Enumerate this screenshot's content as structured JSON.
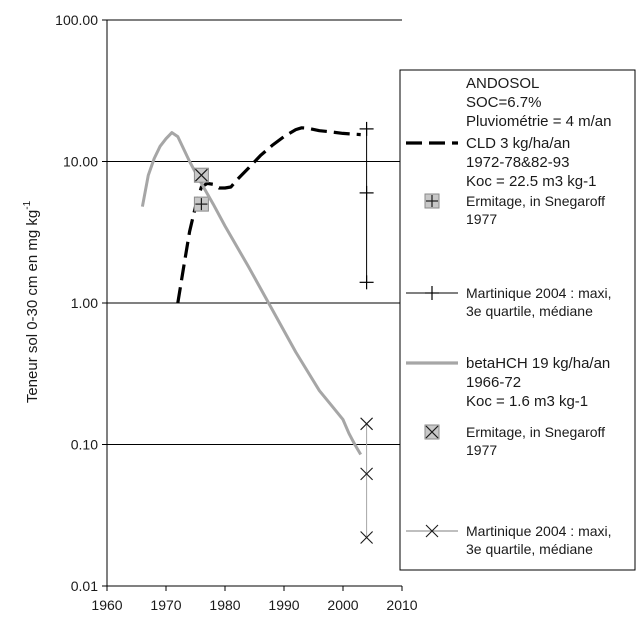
{
  "chart_data": {
    "type": "line",
    "xlabel": "",
    "ylabel": "Teneur sol 0-30 cm en  mg kg",
    "ylabel_sup": "-1",
    "xlim": [
      1960,
      2010
    ],
    "ylim": [
      0.01,
      100
    ],
    "y_scale": "log",
    "x_ticks": [
      "1960",
      "1970",
      "1980",
      "1990",
      "2000",
      "2010"
    ],
    "y_ticks": [
      "100.00",
      "10.00",
      "1.00",
      "0.10",
      "0.01"
    ],
    "grid": "horizontal",
    "legend_position": "right",
    "legend_header": [
      "ANDOSOL",
      "SOC=6.7%",
      "Pluviométrie = 4 m/an"
    ],
    "series": [
      {
        "name": "CLD 3 kg/ha/an 1972-78&82-93 Koc = 22.5 m3 kg-1",
        "legend_lines": [
          "CLD 3 kg/ha/an",
          "1972-78&82-93",
          "Koc = 22.5 m3 kg-1"
        ],
        "style": "dashed",
        "color": "#000000",
        "points": [
          [
            1972,
            1.0
          ],
          [
            1973,
            1.8
          ],
          [
            1974,
            3.2
          ],
          [
            1975,
            4.8
          ],
          [
            1976,
            6.6
          ],
          [
            1977,
            7.0
          ],
          [
            1978,
            6.9
          ],
          [
            1979,
            6.5
          ],
          [
            1980,
            6.5
          ],
          [
            1981,
            6.6
          ],
          [
            1982,
            7.4
          ],
          [
            1984,
            9.0
          ],
          [
            1986,
            11.0
          ],
          [
            1988,
            13.0
          ],
          [
            1990,
            15.0
          ],
          [
            1992,
            16.8
          ],
          [
            1993,
            17.3
          ],
          [
            1994,
            17.2
          ],
          [
            1996,
            16.5
          ],
          [
            1998,
            16.2
          ],
          [
            2000,
            15.8
          ],
          [
            2002,
            15.6
          ],
          [
            2003,
            15.5
          ]
        ]
      },
      {
        "name": "Ermitage, in Snegaroff 1977",
        "legend_lines": [
          "Ermitage, in Snegaroff",
          "1977"
        ],
        "marker": "plus-box",
        "points": [
          [
            1976,
            5.0
          ]
        ]
      },
      {
        "name": "Martinique 2004 : maxi, 3e quartile, médiane",
        "legend_lines": [
          "Martinique 2004 : maxi,",
          "3e quartile, médiane"
        ],
        "marker": "plus",
        "color": "#000000",
        "points": [
          [
            2004,
            17.0
          ],
          [
            2004,
            6.0
          ],
          [
            2004,
            1.4
          ]
        ]
      },
      {
        "name": "betaHCH 19 kg/ha/an 1966-72 Koc = 1.6 m3 kg-1",
        "legend_lines": [
          "betaHCH 19 kg/ha/an",
          "1966-72",
          "Koc = 1.6 m3 kg-1"
        ],
        "style": "solid",
        "color": "#a6a6a6",
        "points": [
          [
            1966,
            4.8
          ],
          [
            1967,
            8.0
          ],
          [
            1968,
            10.5
          ],
          [
            1969,
            12.8
          ],
          [
            1970,
            14.5
          ],
          [
            1971,
            16.0
          ],
          [
            1972,
            15.0
          ],
          [
            1974,
            10.0
          ],
          [
            1976,
            7.0
          ],
          [
            1978,
            5.0
          ],
          [
            1980,
            3.5
          ],
          [
            1984,
            1.8
          ],
          [
            1988,
            0.9
          ],
          [
            1992,
            0.45
          ],
          [
            1996,
            0.24
          ],
          [
            1998,
            0.19
          ],
          [
            2000,
            0.15
          ],
          [
            2001,
            0.12
          ],
          [
            2002,
            0.1
          ],
          [
            2003,
            0.085
          ]
        ]
      },
      {
        "name": "Ermitage, in Snegaroff 1977",
        "legend_lines": [
          "Ermitage, in Snegaroff",
          "1977"
        ],
        "marker": "x-box",
        "points": [
          [
            1976,
            8.0
          ]
        ]
      },
      {
        "name": "Martinique 2004 : maxi, 3e quartile, médiane",
        "legend_lines": [
          "Martinique 2004 : maxi,",
          "3e quartile, médiane"
        ],
        "marker": "x",
        "color": "#a6a6a6",
        "points": [
          [
            2004,
            0.14
          ],
          [
            2004,
            0.062
          ],
          [
            2004,
            0.022
          ]
        ]
      }
    ]
  }
}
